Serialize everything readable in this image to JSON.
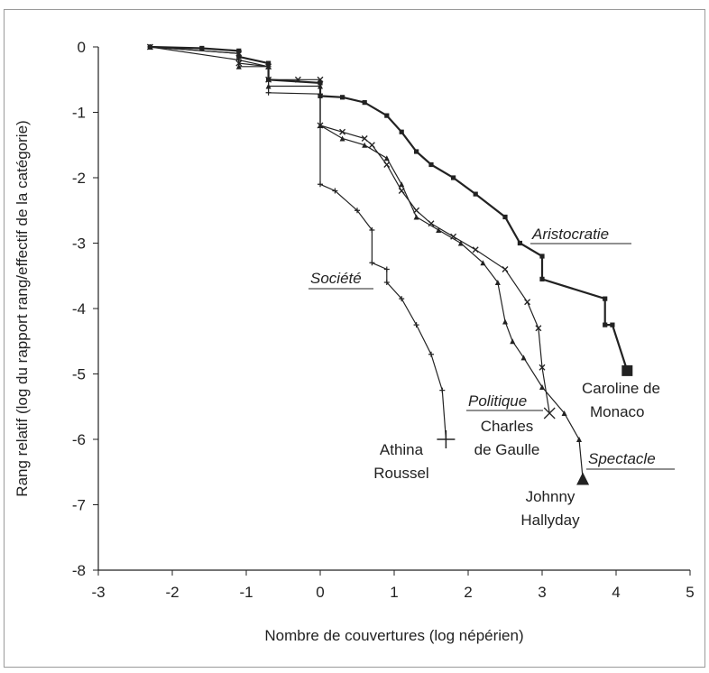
{
  "chart_data": {
    "type": "line",
    "xlabel": "Nombre de couvertures (log népérien)",
    "ylabel": "Rang relatif (log du rapport rang/effectif de la catégorie)",
    "xlim": [
      -3,
      5
    ],
    "ylim": [
      -8,
      0
    ],
    "xticks": [
      "-3",
      "-2",
      "-1",
      "0",
      "1",
      "2",
      "3",
      "4",
      "5"
    ],
    "yticks": [
      "0",
      "-1",
      "-2",
      "-3",
      "-4",
      "-5",
      "-6",
      "-7",
      "-8"
    ],
    "grid": false,
    "series": [
      {
        "name": "Aristocratie",
        "marker": "square",
        "stroke_width": 2.2,
        "x": [
          -2.3,
          -1.6,
          -1.1,
          -1.1,
          -0.7,
          -0.7,
          0.0,
          0.0,
          0.3,
          0.6,
          0.9,
          1.1,
          1.3,
          1.5,
          1.8,
          2.1,
          2.5,
          2.7,
          3.0,
          3.0,
          3.85,
          3.85,
          3.95,
          4.15
        ],
        "y": [
          0.0,
          -0.02,
          -0.06,
          -0.15,
          -0.25,
          -0.5,
          -0.55,
          -0.75,
          -0.77,
          -0.85,
          -1.05,
          -1.3,
          -1.6,
          -1.8,
          -2.0,
          -2.25,
          -2.6,
          -3.0,
          -3.2,
          -3.55,
          -3.85,
          -4.25,
          -4.25,
          -4.95
        ]
      },
      {
        "name": "Politique",
        "marker": "cross",
        "stroke_width": 1.2,
        "x": [
          -2.3,
          -1.1,
          -1.1,
          -0.7,
          -0.7,
          -0.3,
          0.0,
          0.0,
          0.3,
          0.6,
          0.7,
          0.9,
          1.1,
          1.3,
          1.5,
          1.8,
          2.1,
          2.5,
          2.8,
          2.95,
          3.0,
          3.1
        ],
        "y": [
          0.0,
          -0.1,
          -0.25,
          -0.3,
          -0.5,
          -0.5,
          -0.5,
          -1.2,
          -1.3,
          -1.4,
          -1.5,
          -1.8,
          -2.2,
          -2.5,
          -2.7,
          -2.9,
          -3.1,
          -3.4,
          -3.9,
          -4.3,
          -4.9,
          -5.6
        ]
      },
      {
        "name": "Spectacle",
        "marker": "triangle",
        "stroke_width": 1.2,
        "x": [
          -2.3,
          -1.1,
          -1.1,
          -0.7,
          -0.7,
          0.0,
          0.0,
          0.3,
          0.6,
          0.9,
          1.1,
          1.3,
          1.6,
          1.9,
          2.2,
          2.4,
          2.5,
          2.6,
          2.75,
          3.0,
          3.3,
          3.5,
          3.55
        ],
        "y": [
          0.0,
          -0.1,
          -0.3,
          -0.3,
          -0.6,
          -0.6,
          -1.2,
          -1.4,
          -1.5,
          -1.7,
          -2.1,
          -2.6,
          -2.8,
          -3.0,
          -3.3,
          -3.6,
          -4.2,
          -4.5,
          -4.75,
          -5.2,
          -5.6,
          -6.0,
          -6.6
        ]
      },
      {
        "name": "Société",
        "marker": "plus",
        "stroke_width": 1.2,
        "x": [
          -2.3,
          -1.1,
          -0.7,
          -0.7,
          0.0,
          0.0,
          0.2,
          0.5,
          0.7,
          0.7,
          0.9,
          0.9,
          1.1,
          1.3,
          1.5,
          1.65,
          1.7
        ],
        "y": [
          0.0,
          -0.2,
          -0.3,
          -0.7,
          -0.72,
          -2.1,
          -2.2,
          -2.5,
          -2.8,
          -3.3,
          -3.4,
          -3.6,
          -3.85,
          -4.25,
          -4.7,
          -5.25,
          -6.0
        ]
      }
    ],
    "annotations": {
      "aristocratie": "Aristocratie",
      "societe": "Société",
      "politique": "Politique",
      "spectacle": "Spectacle",
      "caroline_1": "Caroline de",
      "caroline_2": "Monaco",
      "charles_1": "Charles",
      "charles_2": "de Gaulle",
      "athina_1": "Athina",
      "athina_2": "Roussel",
      "johnny_1": "Johnny",
      "johnny_2": "Hallyday"
    }
  }
}
